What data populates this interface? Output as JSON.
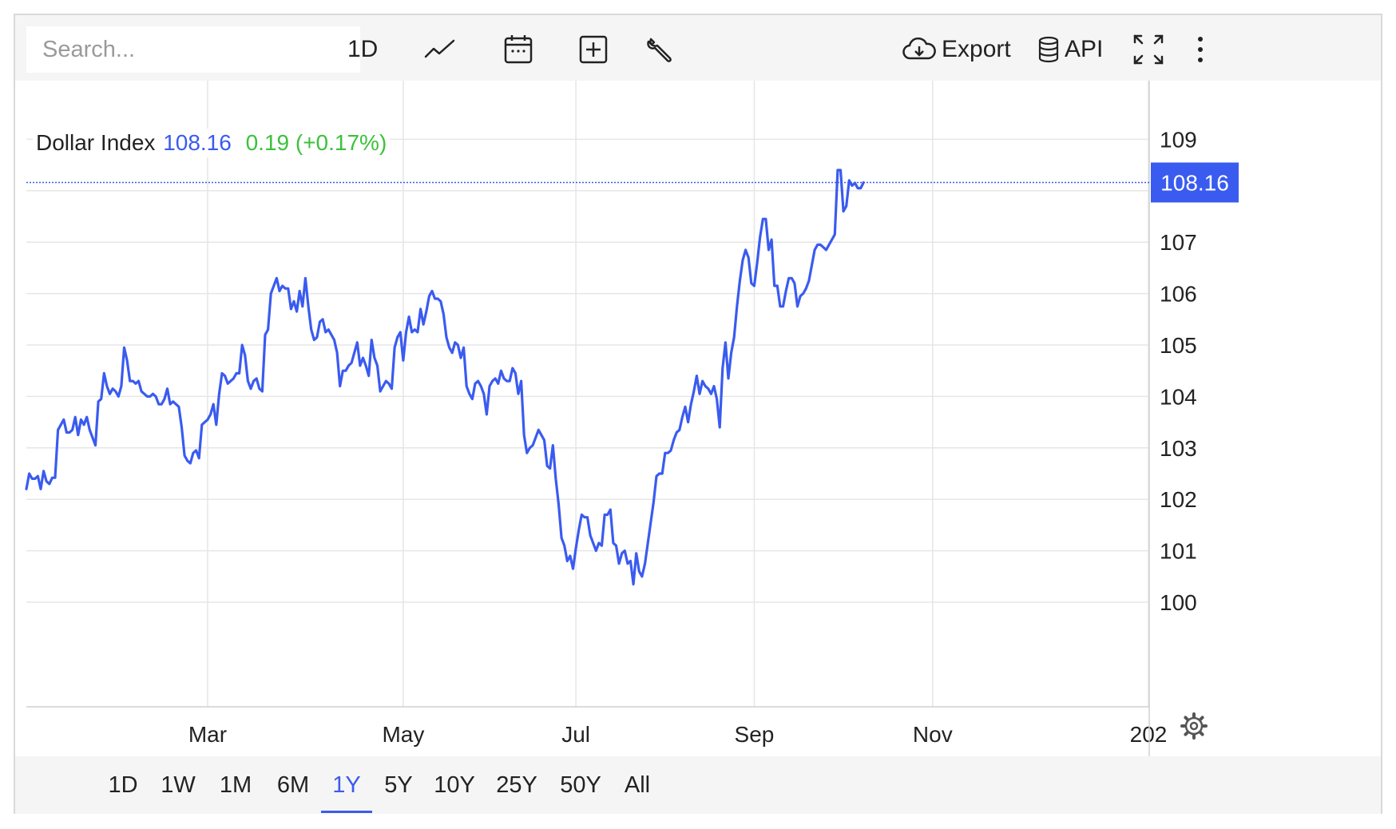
{
  "toolbar": {
    "search_placeholder": "Search...",
    "interval_label": "1D",
    "export_label": "Export",
    "api_label": "API",
    "icons": [
      "line-chart-icon",
      "calendar-icon",
      "add-indicator-icon",
      "wrench-icon",
      "cloud-download-icon",
      "database-icon",
      "fullscreen-icon",
      "more-vertical-icon"
    ]
  },
  "legend": {
    "name": "Dollar Index",
    "price": "108.16",
    "change": "0.19 (+0.17%)"
  },
  "price_tag": "108.16",
  "ranges": [
    "1D",
    "1W",
    "1M",
    "6M",
    "1Y",
    "5Y",
    "10Y",
    "25Y",
    "50Y",
    "All"
  ],
  "active_range": "1Y",
  "colors": {
    "line": "#3a5bf0",
    "positive": "#3cc13c",
    "grid": "#e6e6e6"
  },
  "chart_data": {
    "type": "line",
    "title": "Dollar Index",
    "ylim": [
      99,
      110
    ],
    "yticks": [
      100,
      101,
      102,
      103,
      104,
      105,
      106,
      107,
      108,
      109
    ],
    "ytick_labels": [
      "100",
      "101",
      "102",
      "103",
      "104",
      "105",
      "106",
      "107",
      "",
      "109"
    ],
    "xtick_labels": [
      "Mar",
      "May",
      "Jul",
      "Sep",
      "Nov",
      "202"
    ],
    "xticks": [
      63,
      131,
      191,
      253,
      315,
      390
    ],
    "xlim": [
      0,
      390
    ],
    "last_value": 108.16,
    "grid": true,
    "series": [
      {
        "name": "Dollar Index",
        "values": [
          102.2,
          102.5,
          102.4,
          102.4,
          102.45,
          102.2,
          102.55,
          102.35,
          102.3,
          102.42,
          102.42,
          103.35,
          103.45,
          103.55,
          103.3,
          103.3,
          103.35,
          103.6,
          103.25,
          103.55,
          103.45,
          103.6,
          103.35,
          103.2,
          103.05,
          103.9,
          103.95,
          104.45,
          104.2,
          104.05,
          104.15,
          104.1,
          104.0,
          104.2,
          104.95,
          104.7,
          104.3,
          104.3,
          104.25,
          104.3,
          104.1,
          104.05,
          104.0,
          104.0,
          104.05,
          104.0,
          103.85,
          103.85,
          103.95,
          104.15,
          103.85,
          103.9,
          103.85,
          103.8,
          103.4,
          102.85,
          102.75,
          102.7,
          102.9,
          102.95,
          102.8,
          103.45,
          103.5,
          103.55,
          103.65,
          103.85,
          103.45,
          104.05,
          104.45,
          104.4,
          104.25,
          104.3,
          104.35,
          104.45,
          104.45,
          105.0,
          104.8,
          104.3,
          104.15,
          104.3,
          104.35,
          104.15,
          104.1,
          105.2,
          105.3,
          106.0,
          106.15,
          106.3,
          106.05,
          106.15,
          106.1,
          106.1,
          105.7,
          105.85,
          105.65,
          106.05,
          105.75,
          106.3,
          105.75,
          105.3,
          105.1,
          105.15,
          105.45,
          105.5,
          105.25,
          105.3,
          105.2,
          105.1,
          104.85,
          104.2,
          104.5,
          104.5,
          104.6,
          104.65,
          104.85,
          105.05,
          104.6,
          104.75,
          104.6,
          104.4,
          105.1,
          104.75,
          104.6,
          104.1,
          104.2,
          104.3,
          104.25,
          104.15,
          104.95,
          105.15,
          105.25,
          104.7,
          105.25,
          105.55,
          105.25,
          105.3,
          105.25,
          105.7,
          105.4,
          105.65,
          105.95,
          106.05,
          105.9,
          105.9,
          105.85,
          105.6,
          105.15,
          104.95,
          104.85,
          105.05,
          105.0,
          104.75,
          104.95,
          104.2,
          104.05,
          103.95,
          104.25,
          104.3,
          104.2,
          104.05,
          103.65,
          104.2,
          104.3,
          104.35,
          104.25,
          104.5,
          104.35,
          104.3,
          104.3,
          104.55,
          104.45,
          104.05,
          104.3,
          103.25,
          102.9,
          103.0,
          103.05,
          103.2,
          103.35,
          103.25,
          103.15,
          102.65,
          102.6,
          103.05,
          102.4,
          101.9,
          101.25,
          101.1,
          100.8,
          100.9,
          100.65,
          101.05,
          101.4,
          101.7,
          101.65,
          101.65,
          101.3,
          101.15,
          101.0,
          101.15,
          101.1,
          101.7,
          101.7,
          101.8,
          101.15,
          101.1,
          100.75,
          100.95,
          101.0,
          100.75,
          100.8,
          100.35,
          100.95,
          100.6,
          100.5,
          100.75,
          101.15,
          101.55,
          101.95,
          102.45,
          102.5,
          102.5,
          102.9,
          102.9,
          102.95,
          103.15,
          103.3,
          103.35,
          103.6,
          103.8,
          103.5,
          103.85,
          104.1,
          104.4,
          104.05,
          104.3,
          104.2,
          104.15,
          104.05,
          104.2,
          103.95,
          103.4,
          104.55,
          105.05,
          104.35,
          104.85,
          105.15,
          105.75,
          106.25,
          106.65,
          106.85,
          106.7,
          106.2,
          106.15,
          106.6,
          107.1,
          107.45,
          107.45,
          106.85,
          107.05,
          106.15,
          106.15,
          105.75,
          105.75,
          106.05,
          106.3,
          106.3,
          106.2,
          105.75,
          105.95,
          106.0,
          106.1,
          106.25,
          106.55,
          106.85,
          106.95,
          106.95,
          106.9,
          106.85,
          106.95,
          107.05,
          107.15,
          108.4,
          108.4,
          107.6,
          107.7,
          108.2,
          108.1,
          108.15,
          108.05,
          108.05,
          108.16
        ]
      }
    ]
  }
}
